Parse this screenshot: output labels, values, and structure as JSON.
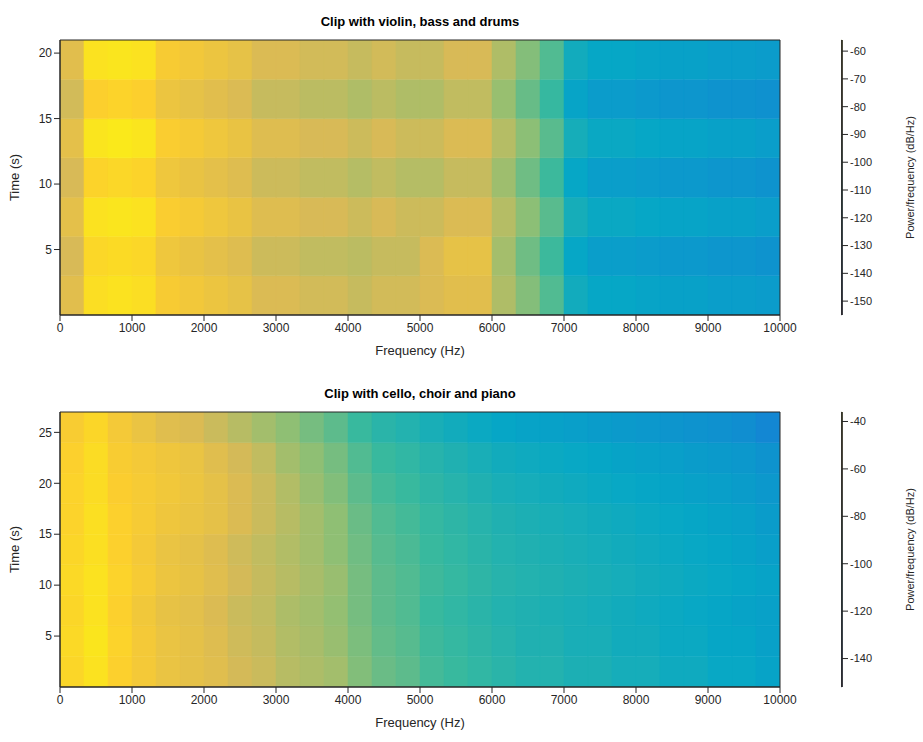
{
  "chart_data": [
    {
      "type": "heatmap",
      "title": "Clip with violin, bass and drums",
      "x_label": "Frequency (Hz)",
      "y_label": "Time (s)",
      "xlim": [
        0,
        10000
      ],
      "xticks": [
        0,
        1000,
        2000,
        3000,
        4000,
        5000,
        6000,
        7000,
        8000,
        9000,
        10000
      ],
      "ylim": [
        0,
        21
      ],
      "yticks": [
        5,
        10,
        15,
        20
      ],
      "grid": false,
      "x_bins": [
        0,
        333,
        667,
        1000,
        1333,
        1667,
        2000,
        2333,
        2667,
        3000,
        3333,
        3667,
        4000,
        4333,
        4667,
        5000,
        5333,
        5667,
        6000,
        6333,
        6667,
        7000,
        7333,
        7667,
        8000,
        8333,
        8667,
        9000,
        9333,
        9667,
        10000
      ],
      "y_bins": [
        0,
        3,
        6,
        9,
        12,
        15,
        18,
        21
      ],
      "values": [
        [
          -78,
          -64,
          -63,
          -64,
          -70,
          -72,
          -74,
          -76,
          -80,
          -80,
          -82,
          -82,
          -84,
          -82,
          -82,
          -80,
          -78,
          -78,
          -88,
          -95,
          -102,
          -115,
          -118,
          -118,
          -119,
          -120,
          -120,
          -121,
          -121,
          -122
        ],
        [
          -81,
          -66,
          -65,
          -66,
          -73,
          -75,
          -77,
          -79,
          -83,
          -83,
          -85,
          -85,
          -86,
          -84,
          -84,
          -80,
          -76,
          -76,
          -90,
          -98,
          -105,
          -118,
          -121,
          -121,
          -122,
          -123,
          -123,
          -124,
          -124,
          -125
        ],
        [
          -77,
          -63,
          -62,
          -63,
          -69,
          -71,
          -73,
          -75,
          -79,
          -79,
          -81,
          -81,
          -83,
          -81,
          -83,
          -83,
          -80,
          -80,
          -87,
          -94,
          -101,
          -114,
          -117,
          -117,
          -118,
          -119,
          -119,
          -120,
          -120,
          -121
        ],
        [
          -81,
          -67,
          -66,
          -67,
          -73,
          -75,
          -77,
          -79,
          -83,
          -83,
          -85,
          -85,
          -87,
          -85,
          -87,
          -87,
          -84,
          -84,
          -91,
          -98,
          -105,
          -118,
          -121,
          -121,
          -122,
          -123,
          -123,
          -124,
          -124,
          -125
        ],
        [
          -77,
          -62,
          -61,
          -62,
          -69,
          -71,
          -73,
          -75,
          -79,
          -79,
          -81,
          -81,
          -83,
          -81,
          -83,
          -83,
          -80,
          -80,
          -87,
          -94,
          -101,
          -114,
          -117,
          -117,
          -118,
          -119,
          -119,
          -120,
          -120,
          -121
        ],
        [
          -82,
          -68,
          -67,
          -68,
          -74,
          -76,
          -78,
          -80,
          -84,
          -84,
          -86,
          -86,
          -88,
          -86,
          -88,
          -88,
          -85,
          -85,
          -92,
          -99,
          -106,
          -119,
          -122,
          -122,
          -123,
          -124,
          -124,
          -125,
          -125,
          -126
        ],
        [
          -78,
          -63,
          -62,
          -63,
          -70,
          -72,
          -74,
          -76,
          -80,
          -80,
          -82,
          -82,
          -84,
          -82,
          -84,
          -84,
          -81,
          -81,
          -88,
          -95,
          -102,
          -115,
          -118,
          -118,
          -119,
          -120,
          -120,
          -121,
          -121,
          -122
        ]
      ],
      "clim": [
        -155,
        -56
      ],
      "cticks": [
        -60,
        -70,
        -80,
        -90,
        -100,
        -110,
        -120,
        -130,
        -140,
        -150
      ],
      "colorbar_label": "Power/frequency (dB/Hz)"
    },
    {
      "type": "heatmap",
      "title": "Clip with cello, choir and piano",
      "x_label": "Frequency (Hz)",
      "y_label": "Time (s)",
      "xlim": [
        0,
        10000
      ],
      "xticks": [
        0,
        1000,
        2000,
        3000,
        4000,
        5000,
        6000,
        7000,
        8000,
        9000,
        10000
      ],
      "ylim": [
        0,
        27
      ],
      "yticks": [
        5,
        10,
        15,
        20,
        25
      ],
      "grid": false,
      "x_bins": [
        0,
        333,
        667,
        1000,
        1333,
        1667,
        2000,
        2333,
        2667,
        3000,
        3333,
        3667,
        4000,
        4333,
        4667,
        5000,
        5333,
        5667,
        6000,
        6333,
        6667,
        7000,
        7333,
        7667,
        8000,
        8333,
        8667,
        9000,
        9333,
        9667,
        10000
      ],
      "y_bins": [
        0,
        3,
        6,
        9,
        12,
        15,
        18,
        21,
        24,
        27
      ],
      "values": [
        [
          -48,
          -44,
          -50,
          -54,
          -58,
          -60,
          -62,
          -66,
          -68,
          -72,
          -74,
          -76,
          -82,
          -86,
          -88,
          -92,
          -94,
          -96,
          -98,
          -100,
          -100,
          -102,
          -102,
          -104,
          -104,
          -106,
          -106,
          -108,
          -108,
          -110
        ],
        [
          -47,
          -43,
          -49,
          -54,
          -58,
          -60,
          -63,
          -67,
          -69,
          -73,
          -75,
          -78,
          -83,
          -87,
          -89,
          -93,
          -95,
          -97,
          -99,
          -101,
          -101,
          -103,
          -103,
          -105,
          -105,
          -107,
          -107,
          -109,
          -109,
          -111
        ],
        [
          -48,
          -44,
          -50,
          -55,
          -59,
          -61,
          -64,
          -68,
          -70,
          -74,
          -76,
          -79,
          -84,
          -88,
          -90,
          -94,
          -96,
          -98,
          -100,
          -101,
          -102,
          -103,
          -104,
          -105,
          -106,
          -107,
          -108,
          -109,
          -110,
          -111
        ],
        [
          -47,
          -44,
          -49,
          -53,
          -57,
          -59,
          -62,
          -66,
          -69,
          -72,
          -75,
          -78,
          -84,
          -88,
          -90,
          -93,
          -95,
          -97,
          -99,
          -100,
          -101,
          -102,
          -103,
          -104,
          -105,
          -106,
          -107,
          -108,
          -109,
          -110
        ],
        [
          -48,
          -45,
          -50,
          -54,
          -58,
          -60,
          -63,
          -67,
          -70,
          -73,
          -76,
          -80,
          -85,
          -89,
          -91,
          -94,
          -96,
          -98,
          -100,
          -101,
          -102,
          -103,
          -104,
          -105,
          -106,
          -107,
          -108,
          -109,
          -110,
          -112
        ],
        [
          -49,
          -45,
          -50,
          -53,
          -56,
          -58,
          -60,
          -64,
          -68,
          -72,
          -76,
          -80,
          -86,
          -90,
          -92,
          -95,
          -97,
          -99,
          -101,
          -102,
          -103,
          -104,
          -105,
          -106,
          -107,
          -108,
          -109,
          -110,
          -111,
          -113
        ],
        [
          -49,
          -46,
          -51,
          -53,
          -55,
          -57,
          -60,
          -64,
          -68,
          -73,
          -78,
          -82,
          -88,
          -92,
          -94,
          -97,
          -99,
          -101,
          -103,
          -104,
          -105,
          -106,
          -107,
          -108,
          -109,
          -110,
          -111,
          -112,
          -113,
          -115
        ],
        [
          -50,
          -46,
          -52,
          -54,
          -56,
          -58,
          -62,
          -66,
          -70,
          -76,
          -80,
          -84,
          -90,
          -94,
          -96,
          -99,
          -101,
          -103,
          -105,
          -106,
          -107,
          -108,
          -109,
          -110,
          -111,
          -112,
          -113,
          -114,
          -115,
          -117
        ],
        [
          -52,
          -48,
          -54,
          -58,
          -62,
          -64,
          -68,
          -72,
          -76,
          -80,
          -84,
          -88,
          -94,
          -98,
          -100,
          -103,
          -105,
          -107,
          -109,
          -110,
          -111,
          -112,
          -113,
          -114,
          -115,
          -116,
          -117,
          -118,
          -119,
          -122
        ]
      ],
      "clim": [
        -152,
        -36
      ],
      "cticks": [
        -40,
        -60,
        -80,
        -100,
        -120,
        -140
      ],
      "colorbar_label": "Power/frequency (dB/Hz)"
    }
  ]
}
